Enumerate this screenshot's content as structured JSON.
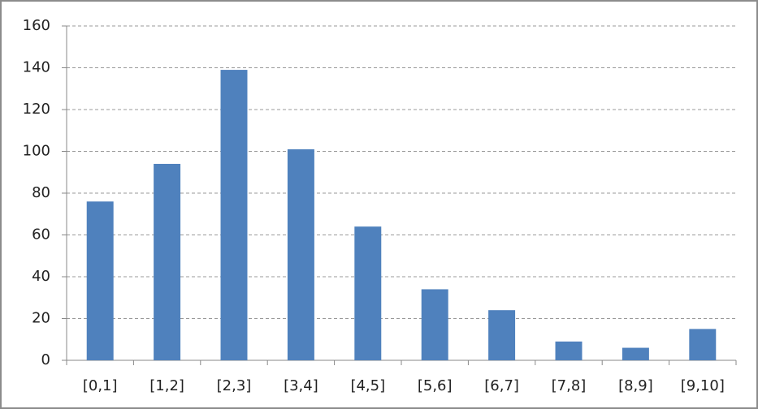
{
  "chart_data": {
    "type": "bar",
    "categories": [
      "[0,1]",
      "[1,2]",
      "[2,3]",
      "[3,4]",
      "[4,5]",
      "[5,6]",
      "[6,7]",
      "[7,8]",
      "[8,9]",
      "[9,10]"
    ],
    "values": [
      76,
      94,
      139,
      101,
      64,
      34,
      24,
      9,
      6,
      15
    ],
    "color": "#4f81bd",
    "ylim": [
      0,
      160
    ],
    "yticks": [
      0,
      20,
      40,
      60,
      80,
      100,
      120,
      140,
      160
    ],
    "grid": true
  }
}
